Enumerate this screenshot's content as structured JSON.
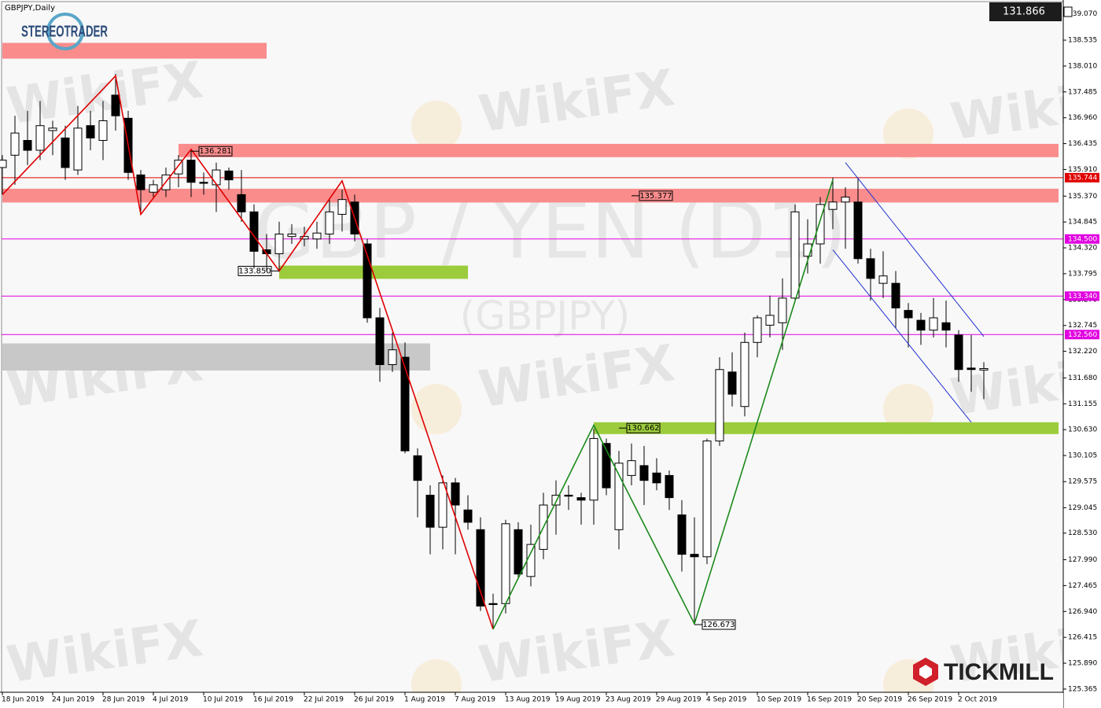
{
  "chart_data": {
    "type": "candlestick",
    "title": "GBPJPY,Daily",
    "watermark_title": "GBP / YEN (D1)",
    "watermark_subtitle": "(GBPJPY)",
    "categories": [
      "18 Jun 2019",
      null,
      null,
      null,
      "24 Jun 2019",
      null,
      null,
      null,
      "28 Jun 2019",
      null,
      null,
      null,
      "4 Jul 2019",
      null,
      null,
      null,
      "10 Jul 2019",
      null,
      null,
      null,
      "16 Jul 2019",
      null,
      null,
      null,
      "22 Jul 2019",
      null,
      null,
      null,
      "26 Jul 2019",
      null,
      null,
      null,
      "1 Aug 2019",
      null,
      null,
      null,
      "7 Aug 2019",
      null,
      null,
      null,
      "13 Aug 2019",
      null,
      null,
      null,
      "19 Aug 2019",
      null,
      null,
      null,
      "23 Aug 2019",
      null,
      null,
      null,
      "29 Aug 2019",
      null,
      null,
      null,
      "4 Sep 2019",
      null,
      null,
      null,
      "10 Sep 2019",
      null,
      null,
      null,
      "16 Sep 2019",
      null,
      null,
      null,
      "20 Sep 2019",
      null,
      null,
      null,
      "26 Sep 2019",
      null,
      null,
      null,
      "2 Oct 2019",
      null,
      null
    ],
    "open": [
      135.95,
      136.2,
      136.5,
      136.3,
      136.7,
      136.55,
      135.9,
      136.8,
      136.5,
      137.42,
      136.95,
      135.8,
      135.45,
      135.5,
      135.82,
      136.1,
      135.65,
      135.6,
      135.88,
      135.4,
      135.05,
      134.28,
      134.2,
      134.55,
      134.5,
      134.5,
      134.6,
      135.0,
      135.25,
      134.4,
      132.9,
      131.95,
      132.1,
      130.1,
      129.3,
      128.65,
      129.55,
      129.0,
      128.6,
      127.1,
      127.1,
      128.6,
      127.65,
      128.2,
      129.1,
      129.3,
      129.25,
      129.2,
      130.35,
      128.6,
      129.7,
      129.9,
      129.75,
      129.7,
      128.9,
      128.1,
      128.05,
      130.4,
      131.8,
      131.1,
      132.4,
      132.75,
      132.8,
      133.3,
      134.15,
      134.4,
      135.1,
      135.25,
      135.25,
      134.1,
      133.6,
      133.6,
      133.05,
      132.85,
      132.65,
      132.8,
      132.55,
      131.88,
      131.84
    ],
    "high": [
      136.2,
      137.0,
      137.1,
      137.3,
      136.9,
      136.8,
      137.2,
      137.1,
      137.3,
      137.85,
      137.1,
      135.9,
      135.7,
      135.95,
      136.2,
      136.3,
      135.85,
      136.05,
      135.95,
      135.9,
      135.2,
      134.6,
      134.85,
      134.8,
      134.75,
      134.85,
      135.3,
      135.5,
      135.4,
      134.5,
      133.1,
      132.6,
      132.4,
      130.25,
      129.5,
      129.7,
      129.65,
      129.3,
      128.85,
      127.3,
      128.8,
      128.75,
      128.7,
      129.35,
      129.6,
      129.5,
      129.35,
      130.65,
      130.45,
      130.2,
      130.35,
      130.3,
      130.05,
      129.8,
      129.2,
      128.85,
      130.45,
      132.1,
      132.2,
      132.6,
      132.95,
      133.35,
      133.7,
      135.2,
      134.9,
      135.35,
      135.75,
      135.55,
      135.75,
      134.3,
      134.25,
      133.85,
      133.2,
      133.0,
      133.3,
      133.25,
      132.65,
      132.55,
      132.0
    ],
    "low": [
      135.4,
      135.6,
      136.0,
      136.1,
      136.2,
      135.7,
      135.8,
      136.3,
      136.1,
      136.7,
      135.7,
      135.05,
      135.35,
      135.35,
      135.55,
      135.35,
      135.4,
      135.05,
      135.5,
      134.85,
      133.9,
      133.85,
      133.85,
      134.4,
      134.35,
      134.3,
      134.4,
      134.65,
      134.45,
      132.8,
      131.6,
      131.8,
      130.15,
      128.85,
      128.1,
      128.2,
      128.1,
      128.6,
      126.95,
      126.6,
      126.9,
      127.6,
      127.45,
      128.0,
      128.5,
      129.0,
      128.7,
      128.7,
      129.3,
      128.2,
      129.5,
      129.1,
      129.4,
      129.0,
      127.75,
      126.7,
      127.9,
      130.3,
      131.1,
      130.9,
      132.1,
      132.5,
      132.25,
      133.25,
      133.8,
      134.0,
      134.7,
      134.3,
      134.0,
      133.25,
      133.3,
      132.7,
      132.3,
      132.35,
      132.5,
      132.3,
      131.6,
      131.4,
      131.25
    ],
    "close": [
      136.1,
      136.65,
      136.3,
      136.8,
      136.75,
      135.95,
      136.75,
      136.55,
      136.9,
      137.0,
      135.85,
      135.5,
      135.6,
      135.8,
      136.1,
      135.65,
      135.63,
      135.9,
      135.7,
      135.05,
      134.25,
      134.2,
      134.6,
      134.6,
      134.55,
      134.62,
      135.05,
      135.3,
      134.6,
      132.9,
      131.95,
      132.25,
      130.2,
      129.6,
      128.65,
      129.55,
      129.1,
      128.75,
      127.05,
      127.08,
      128.72,
      127.7,
      128.3,
      129.1,
      129.3,
      129.28,
      129.2,
      130.45,
      129.45,
      129.95,
      130.0,
      129.6,
      129.55,
      129.25,
      128.1,
      128.05,
      130.4,
      131.85,
      131.35,
      132.4,
      132.9,
      132.95,
      133.3,
      135.05,
      134.4,
      135.2,
      135.25,
      135.35,
      134.1,
      133.7,
      133.75,
      133.1,
      132.9,
      132.65,
      132.9,
      132.65,
      131.85,
      131.85,
      131.87
    ],
    "up_color": "#ffffff",
    "down_color": "#000000",
    "ylim": [
      125.3,
      139.35
    ],
    "yticks": [
      {
        "value": 139.07,
        "label": "139.070"
      },
      138.535,
      {
        "value": 138.01,
        "label": "138.010"
      },
      137.485,
      {
        "value": 136.96,
        "label": "136.960"
      },
      136.435,
      {
        "value": 135.91,
        "label": "135.910"
      },
      {
        "value": 135.37,
        "label": "135.370"
      },
      134.845,
      {
        "value": 134.32,
        "label": "134.320"
      },
      133.795,
      {
        "value": 133.27,
        "label": "133.270"
      },
      132.745,
      {
        "value": 132.22,
        "label": "132.220"
      },
      {
        "value": 131.68,
        "label": "131.680"
      },
      131.155,
      {
        "value": 130.63,
        "label": "130.630"
      },
      130.105,
      129.575,
      129.045,
      {
        "value": 128.53,
        "label": "128.530"
      },
      {
        "value": 127.99,
        "label": "127.990"
      },
      127.465,
      {
        "value": 126.94,
        "label": "126.940"
      },
      126.415,
      {
        "value": 125.89,
        "label": "125.890"
      },
      125.365
    ],
    "zones": [
      {
        "ymin": 138.16,
        "ymax": 138.48,
        "from_bar": 0,
        "to_bar": 21,
        "color": "#fa8c8c"
      },
      {
        "ymin": 136.16,
        "ymax": 136.43,
        "from_bar": 14,
        "to_bar": 84,
        "color": "#fa8c8c"
      },
      {
        "ymin": 135.24,
        "ymax": 135.52,
        "from_bar": 0,
        "to_bar": 84,
        "color": "#fa8c8c"
      },
      {
        "ymin": 133.69,
        "ymax": 133.96,
        "from_bar": 22,
        "to_bar": 37,
        "color": "#9ccc3c"
      },
      {
        "ymin": 131.83,
        "ymax": 132.38,
        "from_bar": 0,
        "to_bar": 34,
        "color": "#c8c8c8"
      },
      {
        "ymin": 130.54,
        "ymax": 130.78,
        "from_bar": 47,
        "to_bar": 84,
        "color": "#9ccc3c"
      }
    ],
    "levels": [
      {
        "value": 135.744,
        "label": "135.744",
        "color": "#e00000"
      },
      {
        "value": 134.5,
        "label": "134.500",
        "color": "#e000e0"
      },
      {
        "value": 133.34,
        "label": "133.340",
        "color": "#e000e0"
      },
      {
        "value": 132.56,
        "label": "132.560",
        "color": "#e000e0"
      }
    ],
    "zigzags": [
      {
        "color": "#e00000",
        "bars": [
          0,
          9,
          11,
          15,
          22,
          27,
          39
        ],
        "values": [
          135.4,
          137.81,
          135.0,
          136.32,
          133.85,
          135.68,
          126.58
        ]
      },
      {
        "color": "#1a8a1a",
        "bars": [
          39,
          47,
          55,
          66
        ],
        "values": [
          126.58,
          130.72,
          126.69,
          135.7
        ]
      }
    ],
    "channel": {
      "color": "#2030d0",
      "lines": [
        {
          "bars": [
            67,
            78
          ],
          "values": [
            136.05,
            132.52
          ]
        },
        {
          "bars": [
            66,
            77
          ],
          "values": [
            134.28,
            130.78
          ]
        }
      ]
    },
    "annotations": [
      {
        "bar": 15,
        "value": 136.281,
        "label": "136.281"
      },
      {
        "bar": 50,
        "value": 135.377,
        "label": "135.377"
      },
      {
        "bar": 22,
        "value": 133.85,
        "label": "133.850"
      },
      {
        "bar": 49,
        "value": 130.662,
        "label": "130.662"
      },
      {
        "bar": 55,
        "value": 126.673,
        "label": "126.673"
      }
    ],
    "current_price": {
      "value": 131.866,
      "label": "131.866"
    }
  },
  "branding": {
    "left_logo": "STEREOTRADER",
    "right_logo": "TICKMILL",
    "watermark": "WikiFX"
  }
}
